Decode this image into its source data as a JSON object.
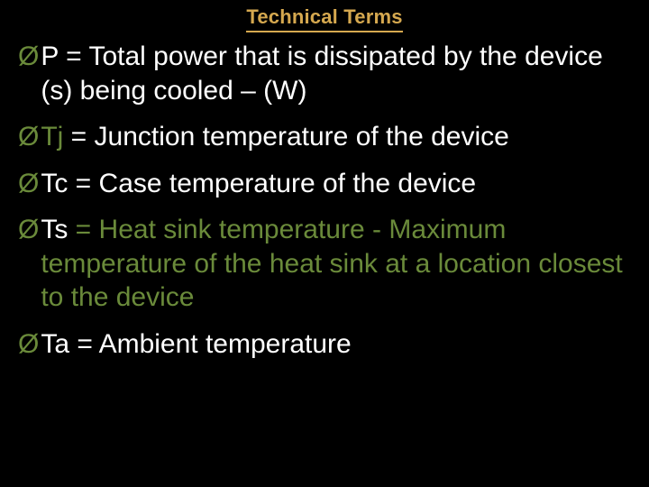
{
  "title": "Technical Terms",
  "background_color": "#000000",
  "title_color": "#d5a84f",
  "title_underline_color": "#d5a84f",
  "title_fontsize": 22,
  "body_fontsize": 30,
  "text_color": "#ffffff",
  "bullet_glyph": "Ø",
  "items": [
    {
      "symbol": "P",
      "definition": " = Total power that is dissipated by the device (s) being cooled – (W)",
      "bullet_color": "#6a8a3a",
      "symbol_color": "#ffffff",
      "definition_color": "#ffffff"
    },
    {
      "symbol": "Tj",
      "definition": " = Junction temperature of the device",
      "bullet_color": "#6a8a3a",
      "symbol_color": "#6a8a3a",
      "definition_color": "#ffffff"
    },
    {
      "symbol": "Tc",
      "definition": " = Case temperature of the device",
      "bullet_color": "#6a8a3a",
      "symbol_color": "#ffffff",
      "definition_color": "#ffffff"
    },
    {
      "symbol": "Ts",
      "definition": " = Heat sink temperature  - Maximum temperature of the heat sink at a location closest to the device",
      "bullet_color": "#6a8a3a",
      "symbol_color": "#ffffff",
      "definition_color": "#6a8a3a"
    },
    {
      "symbol": "Ta",
      "definition": " = Ambient temperature",
      "bullet_color": "#6a8a3a",
      "symbol_color": "#ffffff",
      "definition_color": "#ffffff"
    }
  ]
}
